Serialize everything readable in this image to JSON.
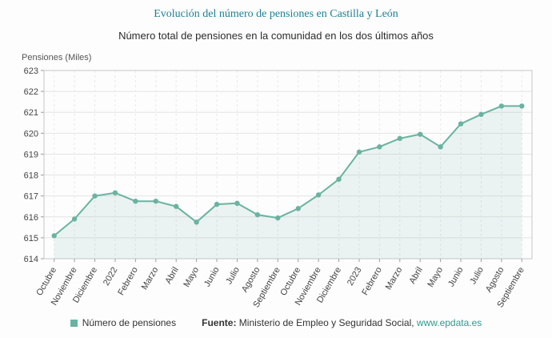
{
  "header": {
    "title": "Evolución del número de pensiones en Castilla y León",
    "subtitle": "Número total de pensiones en la comunidad en los dos últimos años"
  },
  "chart_data": {
    "type": "line",
    "title": "Evolución del número de pensiones en Castilla y León",
    "ylabel": "Pensiones (Miles)",
    "xlabel": "",
    "ylim": [
      614,
      623
    ],
    "ytick_step": 1,
    "grid": true,
    "legend_position": "bottom",
    "categories": [
      "Octubre",
      "Noviembre",
      "Diciembre",
      "2022",
      "Febrero",
      "Marzo",
      "Abril",
      "Mayo",
      "Junio",
      "Julio",
      "Agosto",
      "Septiembre",
      "Octubre",
      "Noviembre",
      "Diciembre",
      "2023",
      "Febrero",
      "Marzo",
      "Abril",
      "Mayo",
      "Junio",
      "Julio",
      "Agosto",
      "Septiembre"
    ],
    "series": [
      {
        "name": "Número de pensiones",
        "values": [
          615.1,
          615.9,
          617.0,
          617.15,
          616.75,
          616.75,
          616.5,
          615.75,
          616.6,
          616.65,
          616.1,
          615.95,
          616.4,
          617.05,
          617.8,
          619.1,
          619.35,
          619.75,
          619.95,
          619.35,
          620.45,
          620.9,
          621.3,
          621.3
        ]
      }
    ],
    "colors": {
      "line": "#6ab3a0",
      "area_fill": "rgba(106,179,160,0.13)",
      "title": "#1d7f92",
      "link": "#2a9d8f"
    }
  },
  "legend": {
    "label": "Número de pensiones"
  },
  "source": {
    "prefix": "Fuente:",
    "text": " Ministerio de Empleo y Seguridad Social, ",
    "link": "www.epdata.es"
  }
}
